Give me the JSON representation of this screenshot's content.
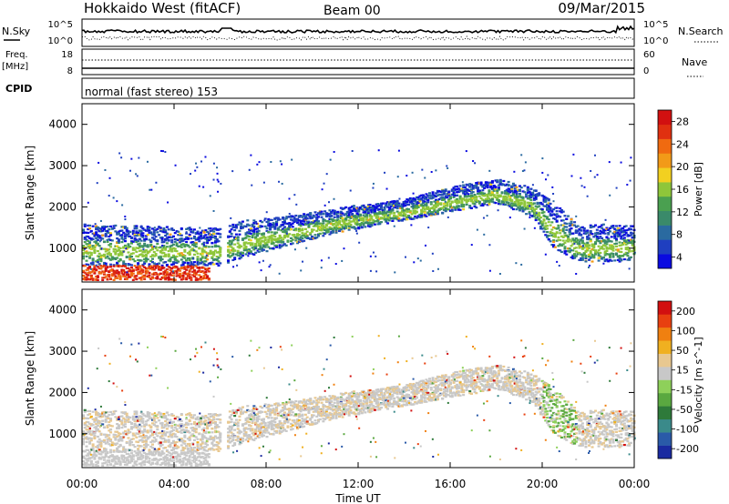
{
  "header": {
    "station": "Hokkaido West (fitACF)",
    "beam": "Beam 00",
    "date": "09/Mar/2015"
  },
  "noise_panel": {
    "left_label": "N.Sky",
    "right_label": "N.Search",
    "left_ticks": [
      "10^5",
      "10^0"
    ],
    "right_ticks": [
      "10^5",
      "10^0"
    ]
  },
  "freq_panel": {
    "left_label_1": "Freq.",
    "left_label_2": "[MHz]",
    "right_label": "Nave",
    "left_ticks": [
      "18",
      "8"
    ],
    "right_ticks": [
      "60",
      "0"
    ]
  },
  "cpid_panel": {
    "label": "CPID",
    "mode_text": "normal (fast stereo) 153"
  },
  "x_axis": {
    "label": "Time UT",
    "ticks": [
      "00:00",
      "04:00",
      "08:00",
      "12:00",
      "16:00",
      "20:00",
      "00:00"
    ]
  },
  "chart_data": [
    {
      "type": "heatmap",
      "title": "Power",
      "ylabel": "Slant Range [km]",
      "xlabel": "Time UT",
      "xlim": [
        0,
        24
      ],
      "ylim": [
        180,
        4500
      ],
      "y_ticks": [
        1000,
        2000,
        3000,
        4000
      ],
      "colorbar": {
        "label": "Power [dB]",
        "ticks": [
          "4",
          "8",
          "12",
          "16",
          "20",
          "24",
          "28"
        ],
        "range": [
          0,
          30
        ],
        "colors": [
          "#0a0ae0",
          "#1f3fc0",
          "#2a6aa0",
          "#3a8a6a",
          "#4aa050",
          "#8ec63a",
          "#f2d020",
          "#f29a18",
          "#f06a10",
          "#e03010",
          "#d21010"
        ]
      },
      "echo_band_km": [
        {
          "t": 0,
          "lo": 600,
          "hi": 1600
        },
        {
          "t": 6,
          "lo": 600,
          "hi": 1500
        },
        {
          "t": 7,
          "lo": 800,
          "hi": 1700
        },
        {
          "t": 9,
          "lo": 1100,
          "hi": 1800
        },
        {
          "t": 11,
          "lo": 1400,
          "hi": 2000
        },
        {
          "t": 14,
          "lo": 1700,
          "hi": 2200
        },
        {
          "t": 16,
          "lo": 1900,
          "hi": 2500
        },
        {
          "t": 18,
          "lo": 2100,
          "hi": 2700
        },
        {
          "t": 19.5,
          "lo": 1800,
          "hi": 2500
        },
        {
          "t": 20.5,
          "lo": 1000,
          "hi": 2100
        },
        {
          "t": 21.5,
          "lo": 700,
          "hi": 1600
        },
        {
          "t": 24,
          "lo": 700,
          "hi": 1600
        }
      ],
      "data_gap_hours": [
        6.0,
        6.3
      ]
    },
    {
      "type": "heatmap",
      "title": "Velocity",
      "ylabel": "Slant Range [km]",
      "xlabel": "Time UT",
      "xlim": [
        0,
        24
      ],
      "ylim": [
        180,
        4500
      ],
      "y_ticks": [
        1000,
        2000,
        3000,
        4000
      ],
      "colorbar": {
        "label": "Velocity [m s^-1]",
        "ticks": [
          "200",
          "100",
          "50",
          "15",
          "-15",
          "-50",
          "-100",
          "-200"
        ],
        "range": [
          -250,
          250
        ],
        "colors": [
          "#1a2aa0",
          "#2a5aa8",
          "#3a8a8a",
          "#2e7a3a",
          "#5aa840",
          "#8ed05a",
          "#c8c8c8",
          "#e8c890",
          "#f0b020",
          "#f08010",
          "#e84010",
          "#d21010"
        ]
      }
    }
  ]
}
